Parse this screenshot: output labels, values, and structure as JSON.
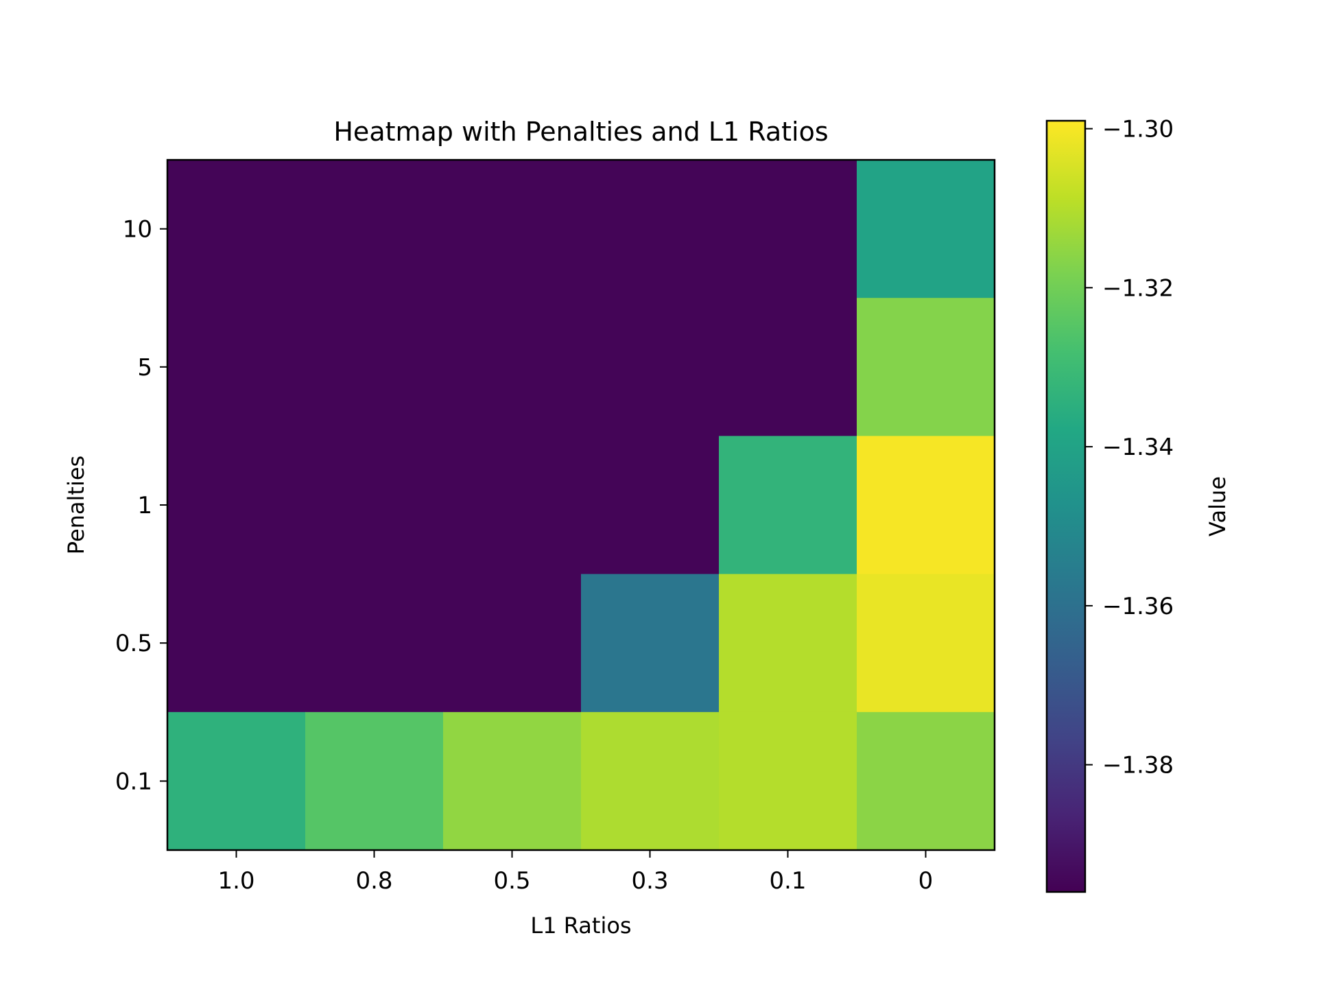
{
  "chart_data": {
    "type": "heatmap",
    "title": "Heatmap with Penalties and L1 Ratios",
    "xlabel": "L1 Ratios",
    "ylabel": "Penalties",
    "x_categories": [
      "1.0",
      "0.8",
      "0.5",
      "0.3",
      "0.1",
      "0"
    ],
    "y_categories": [
      "10",
      "5",
      "1",
      "0.5",
      "0.1"
    ],
    "values": [
      [
        -1.395,
        -1.395,
        -1.395,
        -1.395,
        -1.395,
        -1.34
      ],
      [
        -1.395,
        -1.395,
        -1.395,
        -1.395,
        -1.395,
        -1.317
      ],
      [
        -1.395,
        -1.395,
        -1.395,
        -1.395,
        -1.333,
        -1.3
      ],
      [
        -1.395,
        -1.395,
        -1.395,
        -1.358,
        -1.31,
        -1.302
      ],
      [
        -1.334,
        -1.325,
        -1.315,
        -1.311,
        -1.31,
        -1.316
      ]
    ],
    "colorbar": {
      "label": "Value",
      "colormap": "viridis",
      "range": [
        -1.396,
        -1.299
      ],
      "ticks": [
        -1.3,
        -1.32,
        -1.34,
        -1.36,
        -1.38
      ],
      "tick_labels": [
        "−1.30",
        "−1.32",
        "−1.34",
        "−1.36",
        "−1.38"
      ]
    },
    "grid": false
  }
}
